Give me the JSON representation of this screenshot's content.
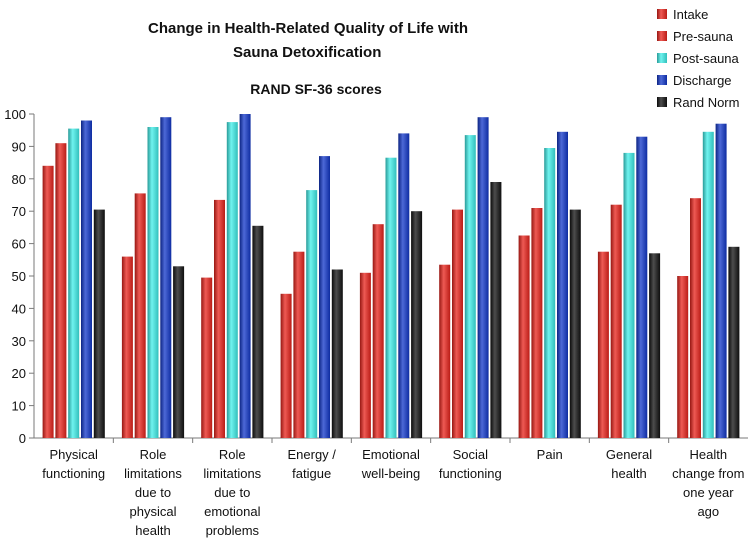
{
  "chart_data": {
    "type": "bar",
    "title_lines": [
      "Change in Health-Related Quality of Life with",
      "Sauna Detoxification"
    ],
    "subtitle": "RAND SF-36 scores",
    "ylim": [
      0,
      100
    ],
    "yticks": [
      0,
      10,
      20,
      30,
      40,
      50,
      60,
      70,
      80,
      90,
      100
    ],
    "grid": false,
    "legend_position": "top-right",
    "categories": [
      [
        "Physical",
        "functioning"
      ],
      [
        "Role",
        "limitations",
        "due to",
        "physical",
        "health"
      ],
      [
        "Role",
        "limitations",
        "due to",
        "emotional",
        "problems"
      ],
      [
        "Energy /",
        "fatigue"
      ],
      [
        "Emotional",
        "well-being"
      ],
      [
        "Social",
        "functioning"
      ],
      [
        "Pain"
      ],
      [
        "General",
        "health"
      ],
      [
        "Health",
        "change from",
        "one year",
        "ago"
      ]
    ],
    "series": [
      {
        "name": "Intake",
        "color": "#e8231b",
        "values": [
          84,
          56,
          49.5,
          44.5,
          51,
          53.5,
          62.5,
          57.5,
          50
        ]
      },
      {
        "name": "Pre-sauna",
        "color": "#e8231b",
        "values": [
          91,
          75.5,
          73.5,
          57.5,
          66,
          70.5,
          71,
          72,
          74
        ]
      },
      {
        "name": "Post-sauna",
        "color": "#3fefea",
        "values": [
          95.5,
          96,
          97.5,
          76.5,
          86.5,
          93.5,
          89.5,
          88,
          94.5
        ]
      },
      {
        "name": "Discharge",
        "color": "#1237c9",
        "values": [
          98,
          99,
          100,
          87,
          94,
          99,
          94.5,
          93,
          97
        ]
      },
      {
        "name": "Rand Norm",
        "color": "#111111",
        "values": [
          70.5,
          53,
          65.5,
          52,
          70,
          79,
          70.5,
          57,
          59
        ]
      }
    ]
  }
}
